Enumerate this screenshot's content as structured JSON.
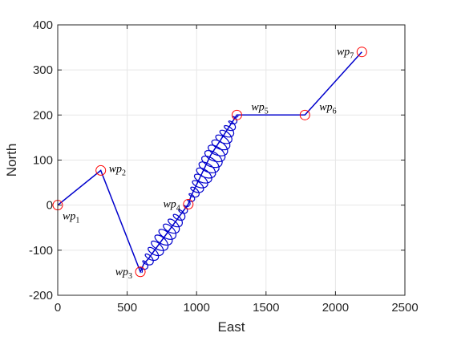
{
  "chart_data": {
    "type": "line",
    "xlabel": "East",
    "ylabel": "North",
    "xlim": [
      0,
      2500
    ],
    "ylim": [
      -200,
      400
    ],
    "x_ticks": [
      0,
      500,
      1000,
      1500,
      2000,
      2500
    ],
    "y_ticks": [
      -200,
      -100,
      0,
      100,
      200,
      300,
      400
    ],
    "grid": true,
    "colors": {
      "path": "#0000cc",
      "waypoint": "#ff0000",
      "grid": "#e6e6e6",
      "axis": "#262626"
    },
    "waypoints": [
      {
        "name": "wp",
        "index": "1",
        "x": 0,
        "y": 0,
        "label_side": "below-right"
      },
      {
        "name": "wp",
        "index": "2",
        "x": 310,
        "y": 77,
        "label_side": "right"
      },
      {
        "name": "wp",
        "index": "3",
        "x": 595,
        "y": -148,
        "label_side": "left"
      },
      {
        "name": "wp",
        "index": "4",
        "x": 940,
        "y": 2,
        "label_side": "left"
      },
      {
        "name": "wp",
        "index": "5",
        "x": 1290,
        "y": 200,
        "label_side": "above-right"
      },
      {
        "name": "wp",
        "index": "6",
        "x": 1780,
        "y": 200,
        "label_side": "above-right"
      },
      {
        "name": "wp",
        "index": "7",
        "x": 2190,
        "y": 340,
        "label_side": "left"
      }
    ],
    "series": [
      {
        "oscillating_segments": [
          [
            2,
            3
          ],
          [
            3,
            4
          ]
        ],
        "path": [
          [
            0,
            0
          ],
          [
            310,
            77
          ],
          [
            325,
            65
          ],
          [
            595,
            -148
          ],
          [
            620,
            -130
          ],
          [
            650,
            -120
          ],
          [
            940,
            2
          ],
          [
            960,
            20
          ],
          [
            1100,
            110
          ],
          [
            1290,
            200
          ],
          [
            1780,
            200
          ],
          [
            2190,
            340
          ]
        ]
      }
    ]
  }
}
